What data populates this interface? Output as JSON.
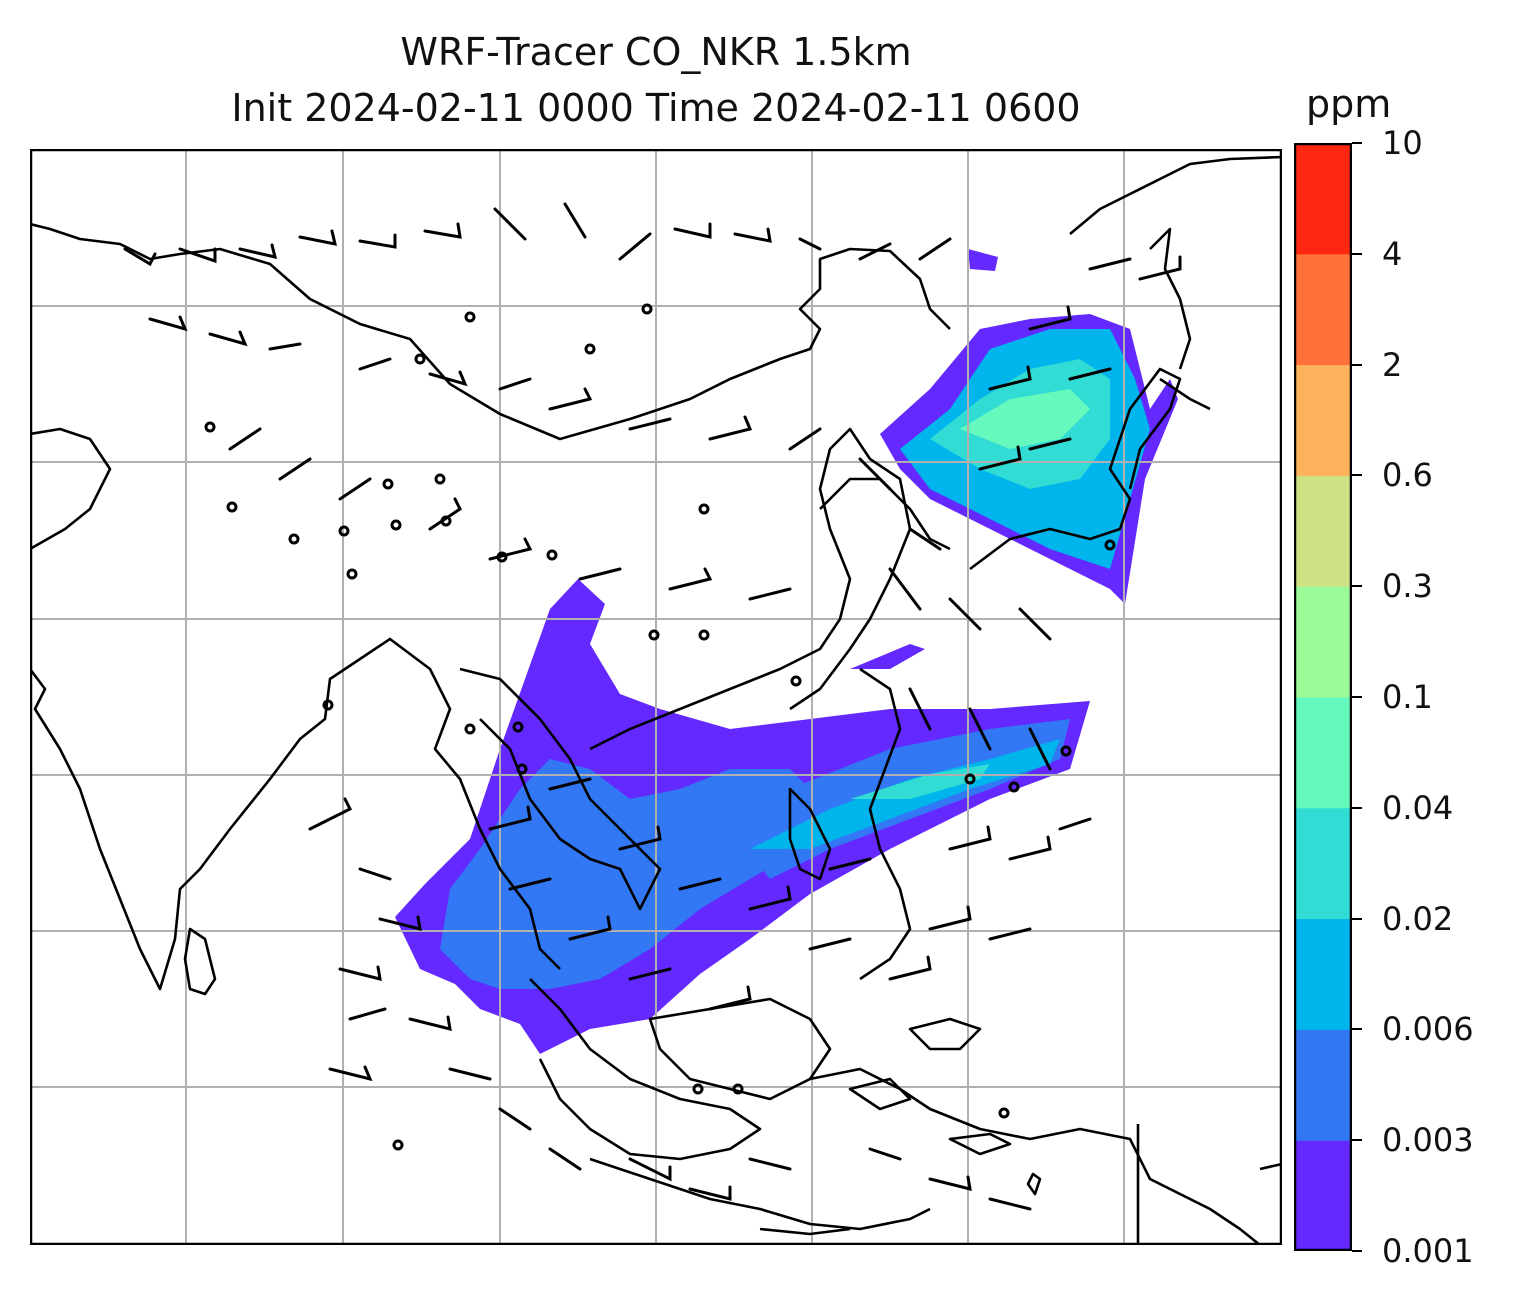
{
  "title_line1": "WRF-Tracer CO_NKR 1.5km",
  "title_line2": "Init 2024-02-11 0000 Time 2024-02-11 0600",
  "colorbar": {
    "unit": "ppm",
    "levels": [
      "0.001",
      "0.003",
      "0.006",
      "0.02",
      "0.04",
      "0.1",
      "0.3",
      "0.6",
      "2",
      "4",
      "10"
    ],
    "colors": [
      "#6329fe",
      "#3277f4",
      "#00b4ec",
      "#30dcd4",
      "#65f9bd",
      "#9bfb98",
      "#cde285",
      "#ffb25e",
      "#ff7139",
      "#fe2712"
    ]
  },
  "map": {
    "gridlines": true,
    "coastline_color": "#000000",
    "grid_color": "#b0b0b0",
    "wind_barb_color": "#000000"
  }
}
